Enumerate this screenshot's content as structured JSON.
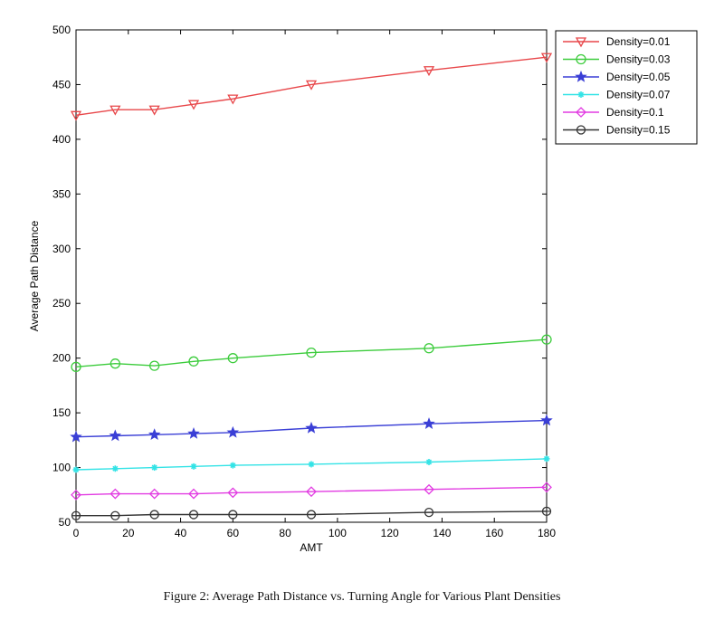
{
  "caption": "Figure 2: Average Path Distance vs. Turning Angle for Various Plant Densities",
  "chart_data": {
    "type": "line",
    "title": "",
    "xlabel": "AMT",
    "ylabel": "Average Path Distance",
    "xlim": [
      0,
      180
    ],
    "ylim": [
      50,
      500
    ],
    "xticks": [
      0,
      20,
      40,
      60,
      80,
      100,
      120,
      140,
      160,
      180
    ],
    "yticks": [
      50,
      100,
      150,
      200,
      250,
      300,
      350,
      400,
      450,
      500
    ],
    "grid": false,
    "legend_position": "top-right",
    "x": [
      0,
      15,
      30,
      45,
      60,
      90,
      135,
      180
    ],
    "series": [
      {
        "name": "Density=0.01",
        "color": "#e8474a",
        "marker": "triangle-down",
        "values": [
          422,
          427,
          427,
          432,
          437,
          450,
          463,
          475
        ]
      },
      {
        "name": "Density=0.03",
        "color": "#3ccc3c",
        "marker": "circle",
        "values": [
          192,
          195,
          193,
          197,
          200,
          205,
          209,
          217
        ]
      },
      {
        "name": "Density=0.05",
        "color": "#3a3fd6",
        "marker": "star",
        "values": [
          128,
          129,
          130,
          131,
          132,
          136,
          140,
          143
        ]
      },
      {
        "name": "Density=0.07",
        "color": "#33e3e6",
        "marker": "asterisk",
        "values": [
          98,
          99,
          100,
          101,
          102,
          103,
          105,
          108
        ]
      },
      {
        "name": "Density=0.1",
        "color": "#e23ce2",
        "marker": "diamond",
        "values": [
          75,
          76,
          76,
          76,
          77,
          78,
          80,
          82
        ]
      },
      {
        "name": "Density=0.15",
        "color": "#333333",
        "marker": "circle-cross",
        "values": [
          56,
          56,
          57,
          57,
          57,
          57,
          59,
          60
        ]
      }
    ]
  }
}
